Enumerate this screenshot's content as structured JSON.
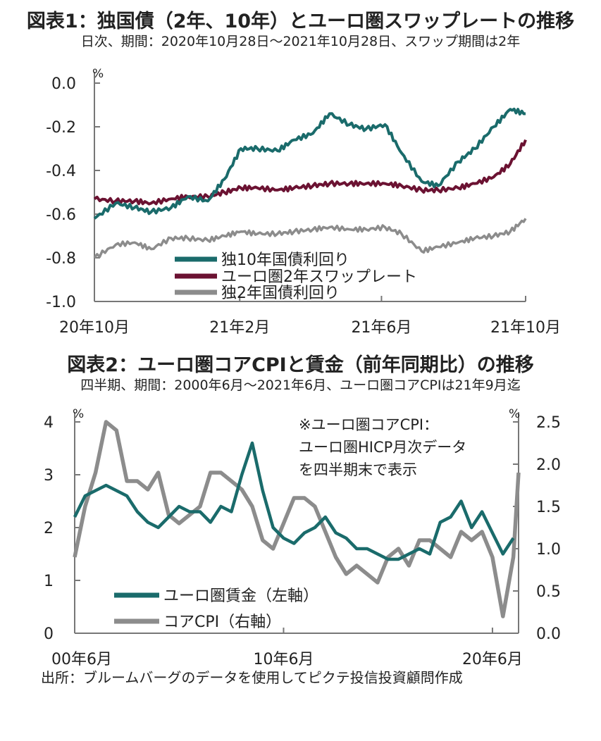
{
  "chart1": {
    "title": "図表1：独国債（2年、10年）とユーロ圏スワップレートの推移",
    "subtitle": "日次、期間：2020年10月28日～2021年10月28日、スワップ期間は2年",
    "chart_data": {
      "type": "line",
      "unit": "%",
      "ylim": [
        -1.0,
        0.0
      ],
      "yticks": [
        "0.0",
        "-0.2",
        "-0.4",
        "-0.6",
        "-0.8",
        "-1.0"
      ],
      "xticks": [
        "20年10月",
        "21年2月",
        "21年6月",
        "21年10月"
      ],
      "legend_placement": "bottom-center",
      "x": [
        "2020-10-28",
        "2020-11-15",
        "2020-12-01",
        "2020-12-15",
        "2021-01-01",
        "2021-01-15",
        "2021-02-01",
        "2021-02-15",
        "2021-03-01",
        "2021-03-15",
        "2021-04-01",
        "2021-04-15",
        "2021-05-01",
        "2021-05-15",
        "2021-06-01",
        "2021-06-15",
        "2021-07-01",
        "2021-07-15",
        "2021-08-01",
        "2021-08-15",
        "2021-09-01",
        "2021-09-15",
        "2021-10-01",
        "2021-10-15",
        "2021-10-28"
      ],
      "series": [
        {
          "name": "独10年国債利回り",
          "color": "#1a6b6b",
          "values": [
            -0.62,
            -0.55,
            -0.57,
            -0.59,
            -0.57,
            -0.52,
            -0.54,
            -0.44,
            -0.3,
            -0.3,
            -0.31,
            -0.26,
            -0.23,
            -0.14,
            -0.19,
            -0.21,
            -0.19,
            -0.32,
            -0.45,
            -0.47,
            -0.36,
            -0.3,
            -0.2,
            -0.12,
            -0.14
          ]
        },
        {
          "name": "ユーロ圏2年スワップレート",
          "color": "#6b1232",
          "values": [
            -0.53,
            -0.54,
            -0.54,
            -0.55,
            -0.53,
            -0.52,
            -0.52,
            -0.5,
            -0.48,
            -0.48,
            -0.49,
            -0.48,
            -0.47,
            -0.46,
            -0.46,
            -0.46,
            -0.46,
            -0.47,
            -0.49,
            -0.49,
            -0.48,
            -0.46,
            -0.43,
            -0.37,
            -0.26
          ]
        },
        {
          "name": "独2年国債利回り",
          "color": "#8c8c8c",
          "values": [
            -0.8,
            -0.74,
            -0.73,
            -0.76,
            -0.71,
            -0.71,
            -0.72,
            -0.7,
            -0.68,
            -0.69,
            -0.69,
            -0.68,
            -0.67,
            -0.66,
            -0.67,
            -0.67,
            -0.66,
            -0.69,
            -0.77,
            -0.75,
            -0.73,
            -0.71,
            -0.7,
            -0.68,
            -0.62
          ]
        }
      ]
    }
  },
  "chart2": {
    "title": "図表2：ユーロ圏コアCPIと賃金（前年同期比）の推移",
    "subtitle": "四半期、期間：2000年6月～2021年6月、ユーロ圏コアCPIは21年9月迄",
    "note_lines": [
      "※ユーロ圏コアCPI：",
      "ユーロ圏HICP月次データ",
      "を四半期末で表示"
    ],
    "chart_data": {
      "type": "line",
      "left_unit": "%",
      "right_unit": "%",
      "ylim_left": [
        0,
        4
      ],
      "ylim_right": [
        0.0,
        2.5
      ],
      "yticks_left": [
        "4",
        "3",
        "2",
        "1",
        "0"
      ],
      "yticks_right": [
        "2.5",
        "2.0",
        "1.5",
        "1.0",
        "0.5",
        "0.0"
      ],
      "xticks": [
        "00年6月",
        "10年6月",
        "20年6月"
      ],
      "legend_placement": "bottom-left",
      "x": [
        2000.5,
        2001.0,
        2001.5,
        2002.0,
        2002.5,
        2003.0,
        2003.5,
        2004.0,
        2004.5,
        2005.0,
        2005.5,
        2006.0,
        2006.5,
        2007.0,
        2007.5,
        2008.0,
        2008.5,
        2009.0,
        2009.5,
        2010.0,
        2010.5,
        2011.0,
        2011.5,
        2012.0,
        2012.5,
        2013.0,
        2013.5,
        2014.0,
        2014.5,
        2015.0,
        2015.5,
        2016.0,
        2016.5,
        2017.0,
        2017.5,
        2018.0,
        2018.5,
        2019.0,
        2019.5,
        2020.0,
        2020.5,
        2021.0,
        2021.5,
        2021.75
      ],
      "series": [
        {
          "name": "ユーロ圏賃金（左軸）",
          "axis": "left",
          "color": "#1a6b6b",
          "values": [
            2.2,
            2.6,
            2.7,
            2.8,
            2.7,
            2.6,
            2.3,
            2.1,
            2.0,
            2.2,
            2.4,
            2.3,
            2.3,
            2.1,
            2.4,
            2.3,
            3.0,
            3.6,
            2.7,
            2.0,
            1.8,
            1.7,
            1.9,
            2.0,
            2.2,
            1.9,
            1.8,
            1.6,
            1.6,
            1.5,
            1.4,
            1.4,
            1.5,
            1.6,
            1.5,
            2.1,
            2.2,
            2.5,
            2.0,
            2.3,
            1.9,
            1.5,
            1.8,
            null
          ]
        },
        {
          "name": "コアCPI（右軸）",
          "axis": "right",
          "color": "#8c8c8c",
          "values": [
            0.9,
            1.5,
            1.9,
            2.5,
            2.4,
            1.8,
            1.8,
            1.7,
            1.9,
            1.4,
            1.3,
            1.4,
            1.5,
            1.9,
            1.9,
            1.8,
            1.7,
            1.5,
            1.1,
            1.0,
            1.3,
            1.6,
            1.6,
            1.5,
            1.2,
            0.9,
            0.7,
            0.8,
            0.7,
            0.6,
            0.9,
            1.0,
            0.8,
            1.1,
            1.1,
            1.0,
            0.9,
            1.2,
            1.1,
            1.2,
            0.9,
            0.2,
            0.9,
            1.9
          ]
        }
      ]
    }
  },
  "source": "出所：ブルームバーグのデータを使用してピクテ投信投資顧問作成"
}
